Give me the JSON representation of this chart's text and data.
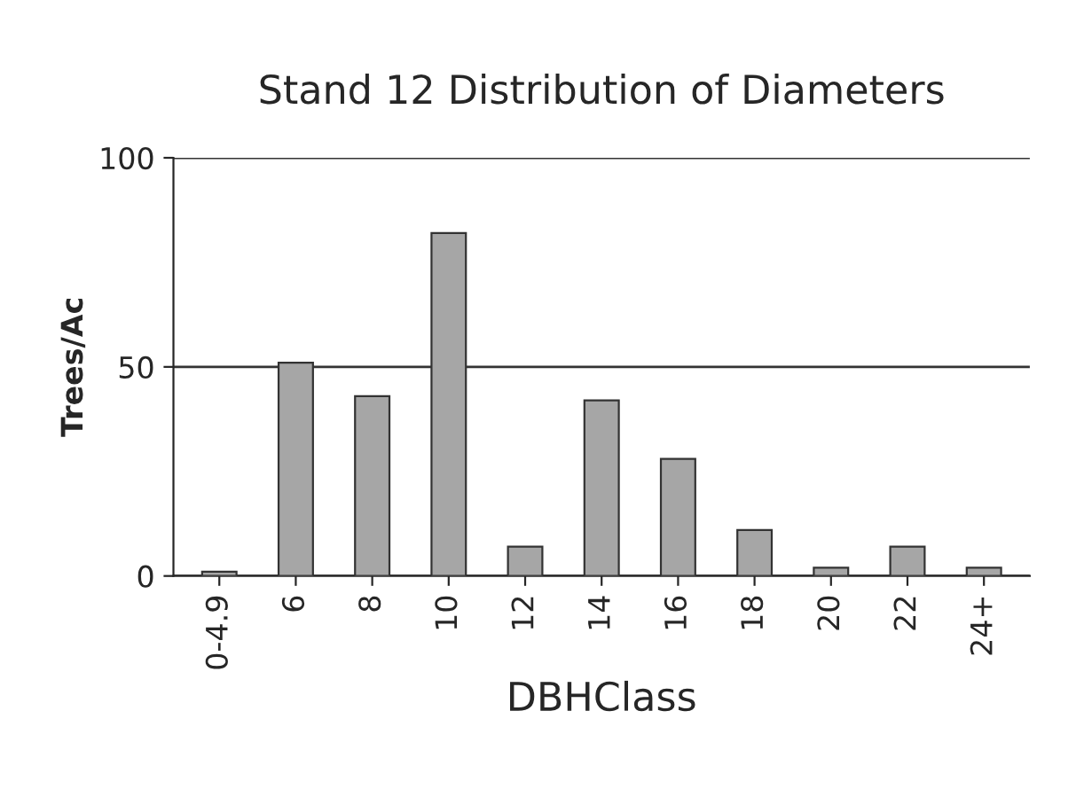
{
  "chart_data": {
    "type": "bar",
    "title": "Stand 12 Distribution of Diameters",
    "xlabel": "DBHClass",
    "ylabel": "Trees/Ac",
    "categories": [
      "0-4.9",
      "6",
      "8",
      "10",
      "12",
      "14",
      "16",
      "18",
      "20",
      "22",
      "24+"
    ],
    "values": [
      1,
      51,
      43,
      82,
      7,
      42,
      28,
      11,
      2,
      7,
      2
    ],
    "color": "#a6a6a6",
    "ylim": [
      0,
      100
    ],
    "yticks": [
      0,
      50,
      100
    ],
    "grid": "y"
  }
}
